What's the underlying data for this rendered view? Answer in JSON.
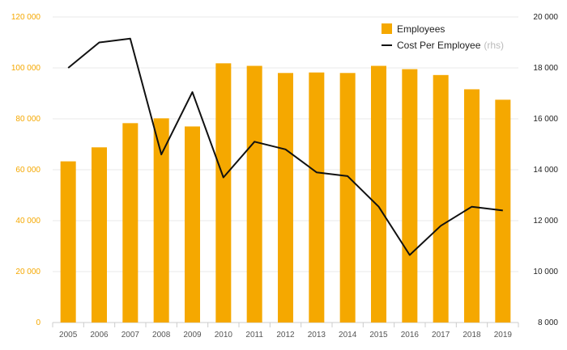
{
  "chart_data": {
    "type": "bar",
    "categories": [
      "2005",
      "2006",
      "2007",
      "2008",
      "2009",
      "2010",
      "2011",
      "2012",
      "2013",
      "2014",
      "2015",
      "2016",
      "2017",
      "2018",
      "2019"
    ],
    "series": [
      {
        "name": "Employees",
        "type": "bar",
        "axis": "left",
        "color": "#f5a800",
        "values": [
          63300,
          68800,
          78300,
          80200,
          77000,
          101800,
          100800,
          98000,
          98200,
          98000,
          100800,
          99500,
          97200,
          91600,
          87500
        ]
      },
      {
        "name": "Cost Per Employee",
        "name_suffix": "(rhs)",
        "type": "line",
        "axis": "right",
        "color": "#111111",
        "values": [
          18000,
          19000,
          19150,
          14600,
          17050,
          13700,
          15100,
          14800,
          13900,
          13750,
          12550,
          10650,
          11800,
          12550,
          12400
        ]
      }
    ],
    "left_axis": {
      "ylim": [
        0,
        120000
      ],
      "ticks": [
        0,
        20000,
        40000,
        60000,
        80000,
        100000,
        120000
      ],
      "tick_labels": [
        "0",
        "20 000",
        "40 000",
        "60 000",
        "80 000",
        "100 000",
        "120 000"
      ],
      "color": "#f5a800"
    },
    "right_axis": {
      "ylim": [
        8000,
        20000
      ],
      "ticks": [
        8000,
        10000,
        12000,
        14000,
        16000,
        18000,
        20000
      ],
      "tick_labels": [
        "8 000",
        "10 000",
        "12 000",
        "14 000",
        "16 000",
        "18 000",
        "20 000"
      ],
      "color": "#222222"
    },
    "grid": true,
    "legend_position": "top-right"
  }
}
